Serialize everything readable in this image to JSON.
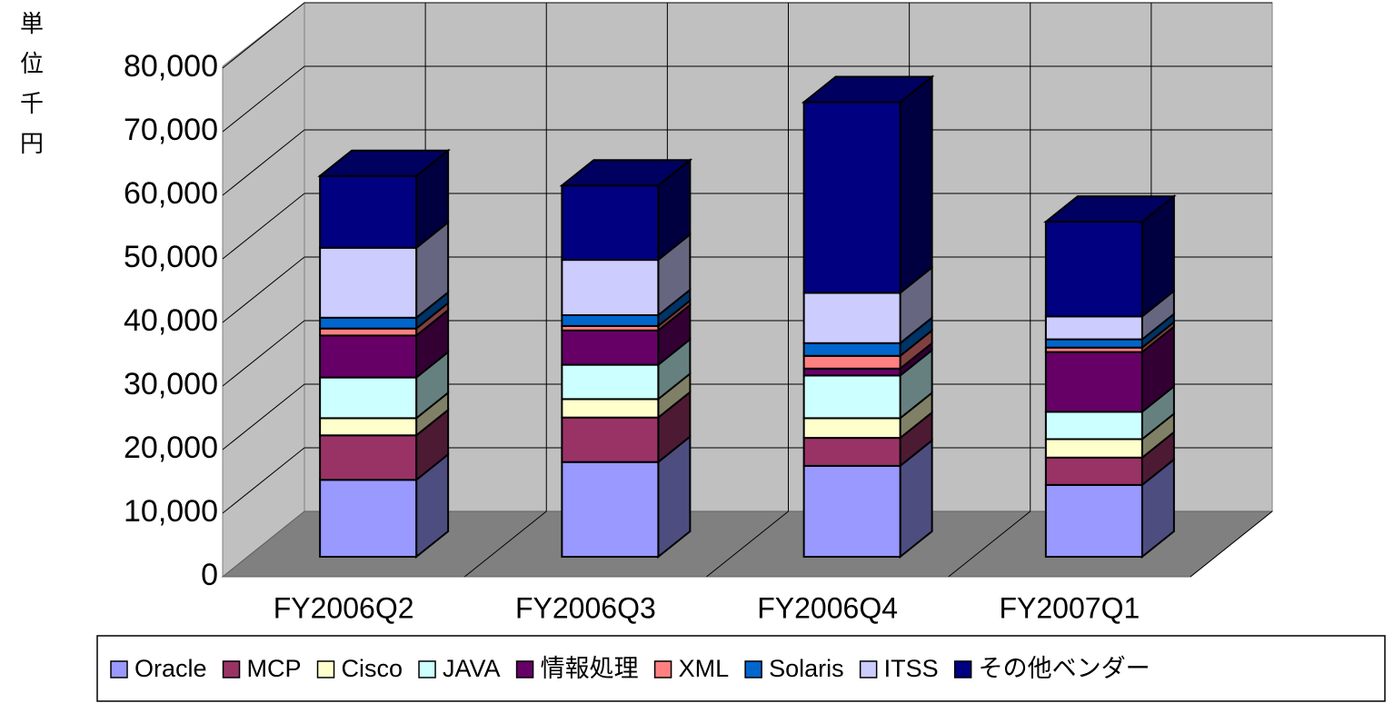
{
  "chart_data": {
    "type": "bar3d_stacked",
    "y_label": "単位千円",
    "categories": [
      "FY2006Q2",
      "FY2006Q3",
      "FY2006Q4",
      "FY2007Q1"
    ],
    "series": [
      {
        "name": "Oracle",
        "color": "#9999ff",
        "values": [
          12100,
          14900,
          14300,
          11300
        ]
      },
      {
        "name": "MCP",
        "color": "#993366",
        "values": [
          7000,
          7000,
          4400,
          4300
        ]
      },
      {
        "name": "Cisco",
        "color": "#ffffcc",
        "values": [
          2700,
          2900,
          3100,
          2900
        ]
      },
      {
        "name": "JAVA",
        "color": "#ccffff",
        "values": [
          6400,
          5400,
          6700,
          4300
        ]
      },
      {
        "name": "情報処理",
        "color": "#660066",
        "values": [
          6600,
          5400,
          1100,
          9400
        ]
      },
      {
        "name": "XML",
        "color": "#ff8080",
        "values": [
          1100,
          700,
          2000,
          700
        ]
      },
      {
        "name": "Solaris",
        "color": "#0066cc",
        "values": [
          1700,
          1700,
          2000,
          1300
        ]
      },
      {
        "name": "ITSS",
        "color": "#ccccff",
        "values": [
          11000,
          8700,
          7900,
          3600
        ]
      },
      {
        "name": "その他ベンダー",
        "color": "#000080",
        "values": [
          11300,
          11700,
          30000,
          14900
        ]
      }
    ],
    "ylim": [
      0,
      80000
    ],
    "yticks": [
      0,
      {
        "value": 10000,
        "label": "10,000"
      },
      {
        "value": 20000,
        "label": "20,000"
      },
      {
        "value": 30000,
        "label": "30,000"
      },
      {
        "value": 40000,
        "label": "40,000"
      },
      {
        "value": 50000,
        "label": "50,000"
      },
      {
        "value": 60000,
        "label": "60,000"
      },
      {
        "value": 70000,
        "label": "70,000"
      },
      {
        "value": 80000,
        "label": "80,000"
      }
    ],
    "grid": true
  }
}
